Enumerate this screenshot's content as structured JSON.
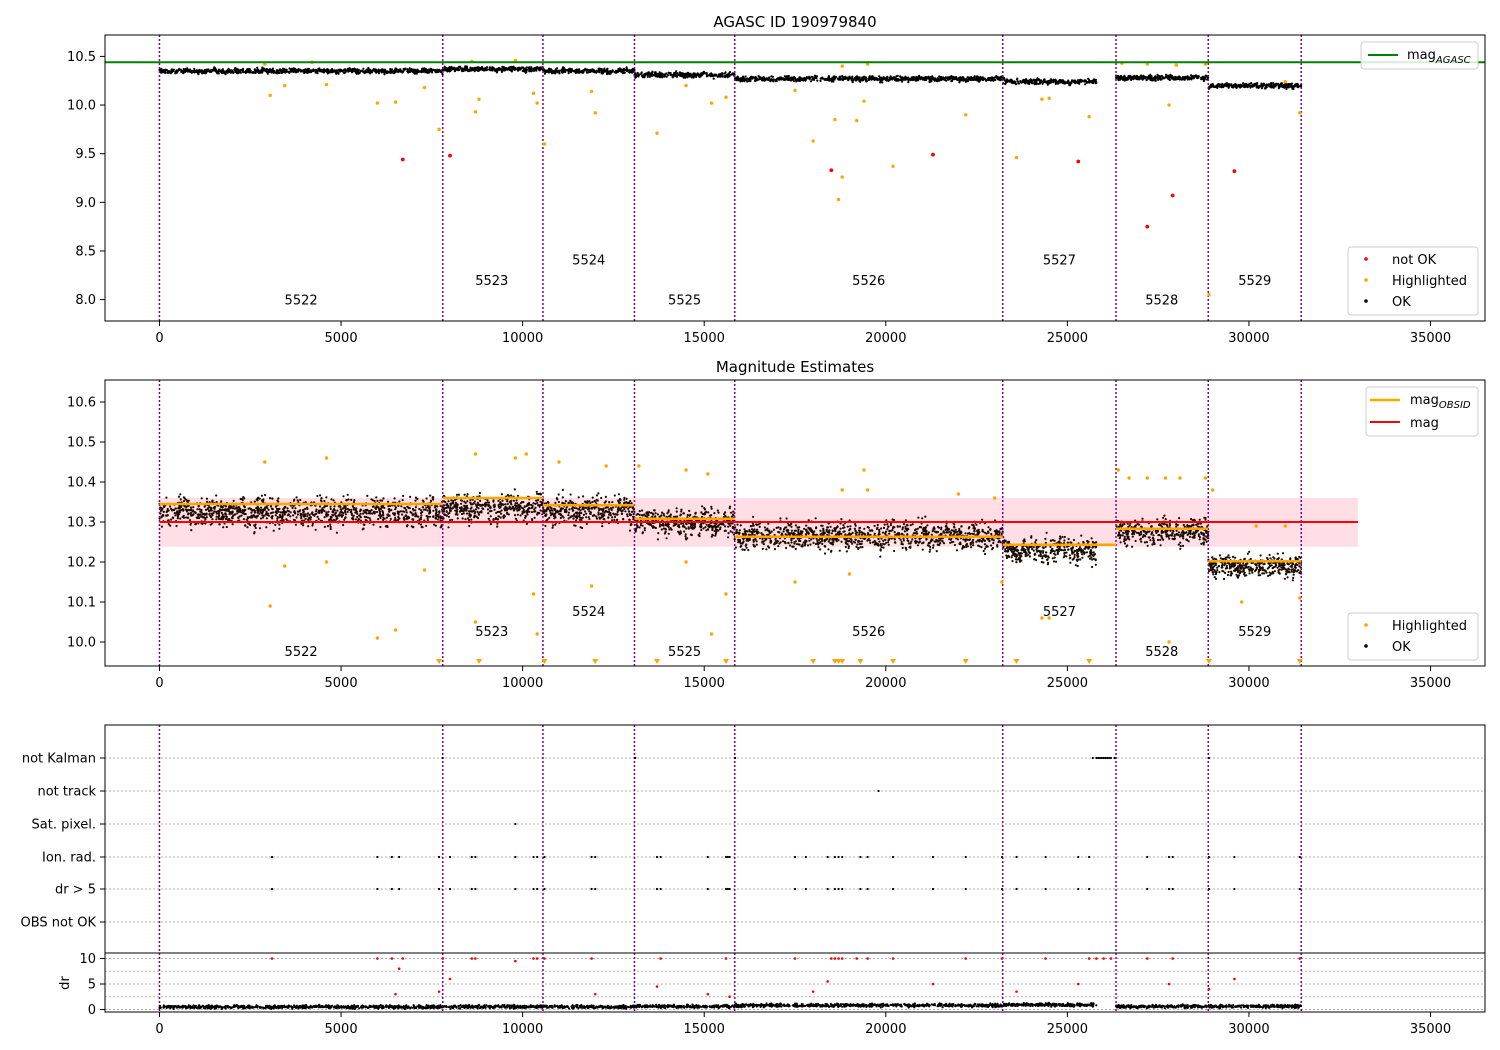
{
  "chart_data": [
    {
      "id": "agasc",
      "type": "scatter",
      "title": "AGASC ID 190979840",
      "xlim": [
        -1500,
        36500
      ],
      "ylim": [
        7.78,
        10.72
      ],
      "xticks": [
        0,
        5000,
        10000,
        15000,
        20000,
        25000,
        30000,
        35000
      ],
      "yticks": [
        8.0,
        8.5,
        9.0,
        9.5,
        10.0,
        10.5
      ],
      "ytick_labels": [
        "8.0",
        "8.5",
        "9.0",
        "9.5",
        "10.0",
        "10.5"
      ],
      "obsid_bounds": [
        0,
        7800,
        10560,
        13080,
        15840,
        23220,
        26340,
        28880,
        31440
      ],
      "obsids": [
        {
          "label": "5522",
          "x": 3900,
          "y": 7.95
        },
        {
          "label": "5523",
          "x": 9150,
          "y": 8.15
        },
        {
          "label": "5524",
          "x": 11820,
          "y": 8.36
        },
        {
          "label": "5525",
          "x": 14460,
          "y": 7.95
        },
        {
          "label": "5526",
          "x": 19530,
          "y": 8.15
        },
        {
          "label": "5527",
          "x": 24780,
          "y": 8.36
        },
        {
          "label": "5528",
          "x": 27600,
          "y": 7.95
        },
        {
          "label": "5529",
          "x": 30160,
          "y": 8.15
        }
      ],
      "mag_agasc": 10.44,
      "ok_band": [
        {
          "x0": 0,
          "x1": 7800,
          "y": 10.35,
          "spread": 0.05
        },
        {
          "x0": 7800,
          "x1": 10560,
          "y": 10.37,
          "spread": 0.05
        },
        {
          "x0": 10560,
          "x1": 13080,
          "y": 10.35,
          "spread": 0.05
        },
        {
          "x0": 13080,
          "x1": 15840,
          "y": 10.31,
          "spread": 0.05
        },
        {
          "x0": 15840,
          "x1": 23220,
          "y": 10.27,
          "spread": 0.05
        },
        {
          "x0": 23220,
          "x1": 25800,
          "y": 10.24,
          "spread": 0.05
        },
        {
          "x0": 26340,
          "x1": 28880,
          "y": 10.28,
          "spread": 0.05
        },
        {
          "x0": 28880,
          "x1": 31440,
          "y": 10.2,
          "spread": 0.05
        }
      ],
      "highlighted_points": [
        [
          3050,
          10.1
        ],
        [
          3450,
          10.2
        ],
        [
          4600,
          10.21
        ],
        [
          6000,
          10.02
        ],
        [
          6500,
          10.03
        ],
        [
          7300,
          10.18
        ],
        [
          7700,
          9.75
        ],
        [
          8700,
          9.93
        ],
        [
          8800,
          10.06
        ],
        [
          10300,
          10.12
        ],
        [
          10400,
          10.02
        ],
        [
          10600,
          9.6
        ],
        [
          11900,
          10.14
        ],
        [
          12000,
          9.92
        ],
        [
          13700,
          9.71
        ],
        [
          14500,
          10.2
        ],
        [
          15200,
          10.02
        ],
        [
          15600,
          10.08
        ],
        [
          17500,
          10.15
        ],
        [
          18000,
          9.63
        ],
        [
          18600,
          9.85
        ],
        [
          18700,
          9.03
        ],
        [
          18800,
          9.26
        ],
        [
          19200,
          9.84
        ],
        [
          19400,
          10.04
        ],
        [
          20200,
          9.37
        ],
        [
          22200,
          9.9
        ],
        [
          23600,
          9.46
        ],
        [
          24300,
          10.06
        ],
        [
          24500,
          10.07
        ],
        [
          25600,
          9.88
        ],
        [
          27800,
          10.0
        ],
        [
          28900,
          8.05
        ],
        [
          31400,
          9.92
        ],
        [
          2900,
          10.42
        ],
        [
          4200,
          10.44
        ],
        [
          8600,
          10.45
        ],
        [
          9800,
          10.46
        ],
        [
          18800,
          10.4
        ],
        [
          19500,
          10.42
        ],
        [
          26500,
          10.43
        ],
        [
          27200,
          10.42
        ],
        [
          28000,
          10.41
        ],
        [
          28800,
          10.42
        ],
        [
          31000,
          10.24
        ]
      ],
      "not_ok_points": [
        [
          6700,
          9.44
        ],
        [
          8000,
          9.48
        ],
        [
          18500,
          9.33
        ],
        [
          21300,
          9.49
        ],
        [
          25300,
          9.42
        ],
        [
          27200,
          8.75
        ],
        [
          27900,
          9.07
        ],
        [
          29600,
          9.32
        ]
      ],
      "legend": {
        "mag": "mag",
        "mag_sub": "AGASC",
        "not_ok": "not OK",
        "highlighted": "Highlighted",
        "ok": "OK"
      },
      "colors": {
        "ok": "#000000",
        "highlighted": "#ffa500",
        "not_ok": "#ff0000",
        "agasc_line": "#008000"
      }
    },
    {
      "id": "estimates",
      "type": "scatter",
      "title": "Magnitude Estimates",
      "xlim": [
        -1500,
        36500
      ],
      "ylim": [
        9.94,
        10.655
      ],
      "xticks": [
        0,
        5000,
        10000,
        15000,
        20000,
        25000,
        30000,
        35000
      ],
      "yticks": [
        10.0,
        10.1,
        10.2,
        10.3,
        10.4,
        10.5,
        10.6
      ],
      "ytick_labels": [
        "10.0",
        "10.1",
        "10.2",
        "10.3",
        "10.4",
        "10.5",
        "10.6"
      ],
      "obsid_bounds": [
        0,
        7800,
        10560,
        13080,
        15840,
        23220,
        26340,
        28880,
        31440
      ],
      "obsids": [
        {
          "label": "5522",
          "x": 3900,
          "y": 9.965
        },
        {
          "label": "5523",
          "x": 9150,
          "y": 10.015
        },
        {
          "label": "5524",
          "x": 11820,
          "y": 10.065
        },
        {
          "label": "5525",
          "x": 14460,
          "y": 9.965
        },
        {
          "label": "5526",
          "x": 19530,
          "y": 10.015
        },
        {
          "label": "5527",
          "x": 24780,
          "y": 10.065
        },
        {
          "label": "5528",
          "x": 27600,
          "y": 9.965
        },
        {
          "label": "5529",
          "x": 30160,
          "y": 10.015
        }
      ],
      "mag": 10.3,
      "mag_band": [
        10.238,
        10.36
      ],
      "band_x": [
        0,
        33000
      ],
      "mag_obsid": [
        {
          "x0": 0,
          "x1": 7800,
          "y": 10.345
        },
        {
          "x0": 7800,
          "x1": 10560,
          "y": 10.36
        },
        {
          "x0": 10560,
          "x1": 13080,
          "y": 10.342
        },
        {
          "x0": 13080,
          "x1": 15840,
          "y": 10.308
        },
        {
          "x0": 15840,
          "x1": 23220,
          "y": 10.263
        },
        {
          "x0": 23220,
          "x1": 26340,
          "y": 10.243
        },
        {
          "x0": 26340,
          "x1": 28880,
          "y": 10.283
        },
        {
          "x0": 28880,
          "x1": 31440,
          "y": 10.202
        }
      ],
      "ok_band": [
        {
          "x0": 0,
          "x1": 7800,
          "y": 10.325,
          "spread": 0.07
        },
        {
          "x0": 7800,
          "x1": 10560,
          "y": 10.335,
          "spread": 0.07
        },
        {
          "x0": 10560,
          "x1": 13080,
          "y": 10.33,
          "spread": 0.07
        },
        {
          "x0": 13080,
          "x1": 15840,
          "y": 10.3,
          "spread": 0.065
        },
        {
          "x0": 15840,
          "x1": 23220,
          "y": 10.265,
          "spread": 0.07
        },
        {
          "x0": 23220,
          "x1": 25800,
          "y": 10.23,
          "spread": 0.065
        },
        {
          "x0": 26340,
          "x1": 28880,
          "y": 10.275,
          "spread": 0.06
        },
        {
          "x0": 28880,
          "x1": 31440,
          "y": 10.19,
          "spread": 0.055
        }
      ],
      "highlighted_points": [
        [
          3050,
          10.09
        ],
        [
          3450,
          10.19
        ],
        [
          4600,
          10.2
        ],
        [
          6000,
          10.01
        ],
        [
          6500,
          10.03
        ],
        [
          7300,
          10.18
        ],
        [
          8700,
          10.05
        ],
        [
          10300,
          10.12
        ],
        [
          10400,
          10.02
        ],
        [
          11900,
          10.14
        ],
        [
          14500,
          10.2
        ],
        [
          15200,
          10.02
        ],
        [
          15600,
          10.12
        ],
        [
          17500,
          10.15
        ],
        [
          19000,
          10.17
        ],
        [
          23200,
          10.15
        ],
        [
          24300,
          10.06
        ],
        [
          24500,
          10.06
        ],
        [
          27800,
          10.0
        ],
        [
          29800,
          10.1
        ],
        [
          31400,
          10.11
        ],
        [
          2900,
          10.45
        ],
        [
          4600,
          10.46
        ],
        [
          8700,
          10.47
        ],
        [
          9800,
          10.46
        ],
        [
          10100,
          10.47
        ],
        [
          11000,
          10.45
        ],
        [
          12300,
          10.44
        ],
        [
          13200,
          10.44
        ],
        [
          14500,
          10.43
        ],
        [
          15100,
          10.42
        ],
        [
          18800,
          10.38
        ],
        [
          19400,
          10.43
        ],
        [
          19500,
          10.38
        ],
        [
          22000,
          10.37
        ],
        [
          23000,
          10.36
        ],
        [
          26400,
          10.43
        ],
        [
          26700,
          10.41
        ],
        [
          27200,
          10.41
        ],
        [
          27700,
          10.41
        ],
        [
          28100,
          10.41
        ],
        [
          28800,
          10.41
        ],
        [
          29000,
          10.38
        ],
        [
          30200,
          10.29
        ],
        [
          31000,
          10.29
        ]
      ],
      "triangle_markers": [
        7700,
        8800,
        10600,
        12000,
        13700,
        15600,
        18000,
        18600,
        18700,
        18800,
        19300,
        20200,
        22200,
        23600,
        25600,
        28900,
        31400
      ],
      "legend": {
        "mag_obsid": "mag",
        "mag_obsid_sub": "OBSID",
        "mag": "mag",
        "highlighted": "Highlighted",
        "ok": "OK"
      },
      "colors": {
        "ok": "#000000",
        "ok_fill": "#3a1a00",
        "highlighted": "#ffa500",
        "mag_line": "#ff0000",
        "mag_band": "#ffc0cb",
        "obsid_line": "#ffa500"
      }
    },
    {
      "id": "flags",
      "type": "scatter",
      "xlim": [
        -1500,
        36500
      ],
      "xticks": [
        0,
        5000,
        10000,
        15000,
        20000,
        25000,
        30000,
        35000
      ],
      "obsid_bounds": [
        0,
        7800,
        10560,
        13080,
        15840,
        23220,
        26340,
        28880,
        31440
      ],
      "flag_rows": [
        "not Kalman",
        "not track",
        "Sat. pixel.",
        "Ion. rad.",
        "dr > 5",
        "OBS not OK"
      ],
      "flag_points": {
        "not Kalman": [
          7800,
          13100,
          15850,
          25700,
          25800,
          25850,
          25900,
          25950,
          26000,
          26050,
          26100,
          26150,
          26200,
          26300,
          28900
        ],
        "not track": [
          19800
        ],
        "Sat. pixel.": [
          9800
        ],
        "Ion. rad.": [
          3100,
          6000,
          6400,
          6600,
          7700,
          8000,
          8600,
          8700,
          9800,
          10300,
          10400,
          10600,
          11900,
          12000,
          13700,
          13800,
          15100,
          15600,
          15650,
          15700,
          17500,
          17800,
          18400,
          18600,
          18700,
          18800,
          19300,
          19500,
          20200,
          21300,
          22200,
          23200,
          23600,
          24400,
          25300,
          25600,
          27200,
          27800,
          27900,
          28900,
          29600,
          31400
        ],
        "dr > 5": [
          3100,
          6000,
          6400,
          6600,
          7700,
          8000,
          8600,
          8700,
          9800,
          10300,
          10400,
          10600,
          11900,
          12000,
          13700,
          13800,
          15100,
          15600,
          15650,
          15700,
          17500,
          17800,
          18400,
          18600,
          18700,
          18800,
          19300,
          19500,
          20200,
          21300,
          22200,
          23200,
          23600,
          24400,
          25300,
          25600,
          27200,
          27800,
          27900,
          28900,
          29600,
          31400
        ],
        "OBS not OK": []
      },
      "dr_ylabel": "dr",
      "dr_ylim": [
        -0.5,
        10.5
      ],
      "dr_yticks": [
        0,
        5,
        10
      ],
      "dr_ytick_labels": [
        "0",
        "5",
        "10"
      ],
      "dr_high_points": [
        [
          3100,
          10
        ],
        [
          6000,
          10
        ],
        [
          6400,
          10
        ],
        [
          6500,
          3
        ],
        [
          6600,
          8
        ],
        [
          6700,
          10
        ],
        [
          7700,
          3.5
        ],
        [
          7800,
          10
        ],
        [
          8000,
          6
        ],
        [
          8600,
          10
        ],
        [
          8700,
          10
        ],
        [
          9800,
          9.5
        ],
        [
          10300,
          10
        ],
        [
          10400,
          10
        ],
        [
          10600,
          10
        ],
        [
          11900,
          10
        ],
        [
          12000,
          3
        ],
        [
          13700,
          4.5
        ],
        [
          13800,
          10
        ],
        [
          15100,
          3
        ],
        [
          15600,
          10
        ],
        [
          15700,
          2.5
        ],
        [
          17500,
          10
        ],
        [
          18000,
          3.5
        ],
        [
          18400,
          5.5
        ],
        [
          18500,
          10
        ],
        [
          18600,
          10
        ],
        [
          18700,
          10
        ],
        [
          18800,
          10
        ],
        [
          19200,
          10
        ],
        [
          19500,
          10
        ],
        [
          20200,
          10
        ],
        [
          21300,
          5
        ],
        [
          22200,
          10
        ],
        [
          23200,
          10
        ],
        [
          23600,
          3.5
        ],
        [
          24400,
          10
        ],
        [
          25300,
          5
        ],
        [
          25600,
          10
        ],
        [
          25800,
          10
        ],
        [
          26000,
          10
        ],
        [
          26200,
          10
        ],
        [
          27200,
          10
        ],
        [
          27800,
          5
        ],
        [
          27900,
          10
        ],
        [
          28900,
          4
        ],
        [
          29600,
          6
        ],
        [
          31400,
          10
        ]
      ],
      "colors": {
        "ok": "#000000",
        "dr_high": "#ff0000",
        "flag": "#000000"
      }
    }
  ]
}
